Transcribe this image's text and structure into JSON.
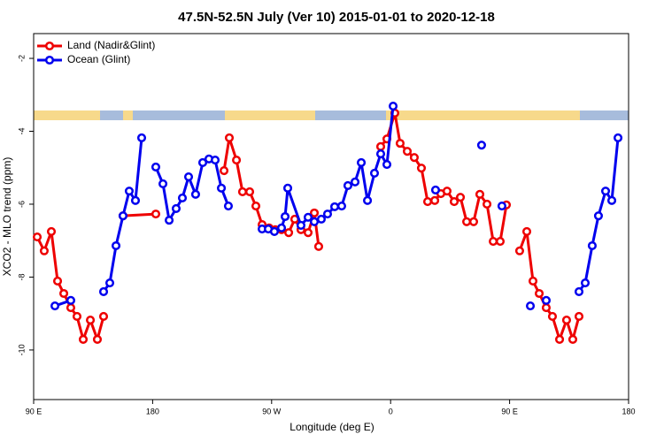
{
  "chart_data": {
    "type": "line",
    "title": "47.5N-52.5N July (Ver 10)   2015-01-01 to 2020-12-18",
    "x_label": "Longitude (deg E)",
    "y_label": "XCO2 - MLO trend (ppm)",
    "xlim": [
      90,
      540
    ],
    "xticks": [
      {
        "value": 90,
        "label": "90 E"
      },
      180,
      {
        "value": 270,
        "label": "90 W"
      },
      {
        "value": 360,
        "label": "0"
      },
      {
        "value": 450,
        "label": "90 E"
      },
      {
        "value": 540,
        "label": "180"
      }
    ],
    "ylim": [
      -11.36,
      -1.32
    ],
    "yticks": [
      -2,
      -4,
      -6,
      -8,
      -10
    ],
    "legend": "top-left",
    "series": [
      {
        "name": "Land (Nadir&Glint)",
        "color": "#ee0000",
        "x": [
          92.7,
          98.0,
          103.4,
          108.1,
          112.8,
          118.1,
          122.8,
          127.5,
          132.9,
          138.2,
          142.9,
          null,
          157.6,
          182.4,
          null,
          234.0,
          238.0,
          243.4,
          248.0,
          253.4,
          258.1,
          262.8,
          268.1,
          272.8,
          277.5,
          282.9,
          287.5,
          292.2,
          297.6,
          302.3,
          305.6,
          null,
          352.5,
          357.2,
          363.2,
          367.2,
          372.6,
          377.9,
          383.3,
          388.0,
          393.4,
          398.0,
          402.7,
          408.1,
          412.8,
          417.5,
          422.8,
          427.5,
          432.9,
          437.6,
          442.9,
          447.6,
          null,
          457.6,
          463.0,
          467.7,
          472.4,
          477.7,
          482.4,
          487.8,
          493.1,
          497.8,
          502.5
        ],
        "values": [
          -6.9,
          -7.28,
          -6.75,
          -8.11,
          -8.45,
          -8.84,
          -9.08,
          -9.71,
          -9.18,
          -9.71,
          -9.08,
          null,
          -6.32,
          -6.27,
          null,
          -5.08,
          -4.18,
          -4.79,
          -5.66,
          -5.66,
          -6.05,
          -6.56,
          -6.65,
          -6.7,
          -6.7,
          -6.78,
          -6.41,
          -6.7,
          -6.78,
          -6.24,
          -7.16,
          null,
          -4.42,
          -4.21,
          -3.5,
          -4.33,
          -4.55,
          -4.72,
          -5.01,
          -5.93,
          -5.9,
          -5.71,
          -5.64,
          -5.93,
          -5.81,
          -6.48,
          -6.48,
          -5.73,
          -6.0,
          -7.02,
          -7.02,
          -6.02,
          null,
          -7.28,
          -6.75,
          -8.11,
          -8.45,
          -8.84,
          -9.08,
          -9.71,
          -9.18,
          -9.71,
          -9.08
        ]
      },
      {
        "name": "Ocean (Glint)",
        "color": "#0000ee",
        "x": [
          106.1,
          118.1,
          null,
          142.9,
          147.6,
          152.3,
          157.6,
          162.3,
          167.0,
          171.7,
          null,
          182.4,
          187.8,
          192.5,
          197.8,
          202.5,
          207.2,
          212.5,
          217.9,
          222.6,
          227.3,
          232.0,
          237.3,
          null,
          262.8,
          267.5,
          272.1,
          277.5,
          280.2,
          282.2,
          292.2,
          297.6,
          302.3,
          307.6,
          312.3,
          317.7,
          323.0,
          327.7,
          333.1,
          337.8,
          342.5,
          347.8,
          352.5,
          357.2,
          361.9,
          null,
          394.0,
          null,
          428.8,
          null,
          444.2,
          null,
          465.7,
          null,
          477.7,
          null,
          502.5,
          507.2,
          512.5,
          517.2,
          522.6,
          527.3,
          532.0
        ],
        "values": [
          -8.79,
          -8.64,
          null,
          -8.4,
          -8.16,
          -7.14,
          -6.32,
          -5.64,
          -5.9,
          -4.18,
          null,
          -4.98,
          -5.44,
          -6.44,
          -6.12,
          -5.83,
          -5.25,
          -5.73,
          -4.86,
          -4.76,
          -4.79,
          -5.56,
          -6.05,
          null,
          -6.68,
          -6.68,
          -6.75,
          -6.65,
          -6.34,
          -5.56,
          -6.58,
          -6.36,
          -6.48,
          -6.41,
          -6.27,
          -6.07,
          -6.05,
          -5.49,
          -5.39,
          -4.86,
          -5.9,
          -5.15,
          -4.62,
          -4.91,
          -3.31,
          null,
          -5.61,
          null,
          -4.38,
          null,
          -6.05,
          null,
          -8.79,
          null,
          -8.64,
          null,
          -8.4,
          -8.16,
          -7.14,
          -6.32,
          -5.64,
          -5.9,
          -4.18
        ]
      }
    ]
  }
}
